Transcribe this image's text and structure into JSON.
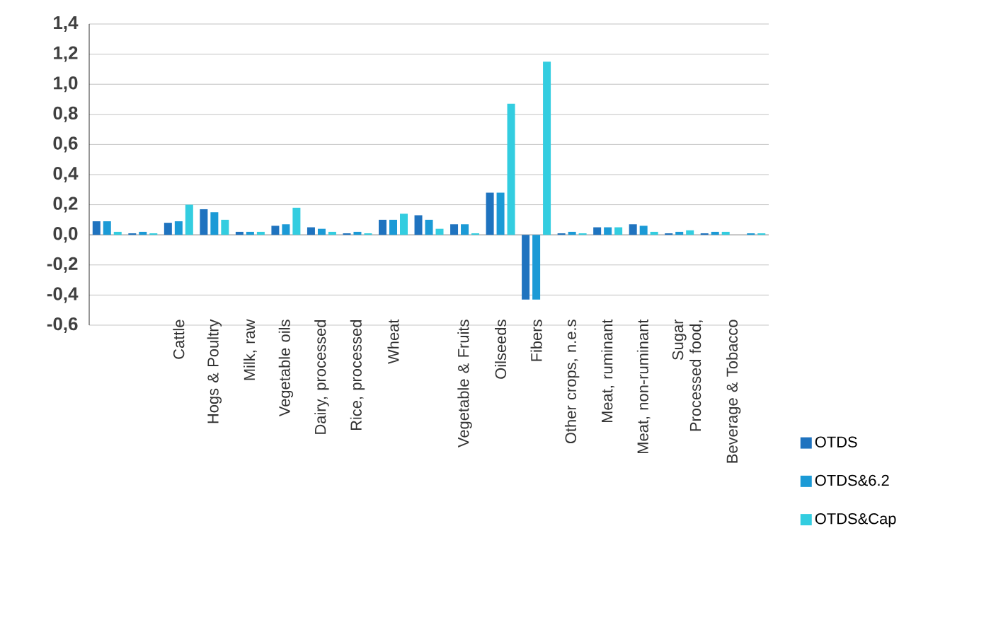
{
  "chart_data": {
    "type": "bar",
    "categories": [
      null,
      null,
      "Cattle",
      "Hogs & Poultry",
      "Milk, raw",
      "Vegetable oils",
      "Dairy, processed",
      "Rice, processed",
      "Wheat",
      null,
      "Vegetable & Fruits",
      "Oilseeds",
      "Fibers",
      "Other crops, n.e.s",
      "Meat, ruminant",
      "Meat, non-ruminant",
      "Sugar",
      "Processed food, Beverage & Tobacco",
      null
    ],
    "series": [
      {
        "name": "OTDS",
        "color": "#1f73bf",
        "values": [
          0.09,
          0.01,
          0.08,
          0.17,
          0.02,
          0.06,
          0.05,
          0.01,
          0.1,
          0.13,
          0.07,
          0.28,
          -0.43,
          0.01,
          0.05,
          0.07,
          0.01,
          0.01,
          0.0
        ]
      },
      {
        "name": "OTDS&6.2",
        "color": "#1b9ad6",
        "values": [
          0.09,
          0.02,
          0.09,
          0.15,
          0.02,
          0.07,
          0.04,
          0.02,
          0.1,
          0.1,
          0.07,
          0.28,
          -0.43,
          0.02,
          0.05,
          0.06,
          0.02,
          0.02,
          0.01
        ]
      },
      {
        "name": "OTDS&Cap",
        "color": "#33cde0",
        "values": [
          0.02,
          0.01,
          0.2,
          0.1,
          0.02,
          0.18,
          0.02,
          0.01,
          0.14,
          0.04,
          0.01,
          0.87,
          1.15,
          0.01,
          0.05,
          0.02,
          0.03,
          0.02,
          0.01
        ]
      }
    ],
    "ylim": [
      -0.6,
      1.4
    ],
    "yticks": [
      {
        "value": -0.6,
        "label": "-0,6"
      },
      {
        "value": -0.4,
        "label": "-0,4"
      },
      {
        "value": -0.2,
        "label": "-0,2"
      },
      {
        "value": 0,
        "label": "0,0"
      },
      {
        "value": 0.2,
        "label": "0,2"
      },
      {
        "value": 0.4,
        "label": "0,4"
      },
      {
        "value": 0.6,
        "label": "0,6"
      },
      {
        "value": 0.8,
        "label": "0,8"
      },
      {
        "value": 1.0,
        "label": "1,0"
      },
      {
        "value": 1.2,
        "label": "1,2"
      },
      {
        "value": 1.4,
        "label": "1,4"
      }
    ],
    "grid": "y",
    "legend": "right"
  }
}
